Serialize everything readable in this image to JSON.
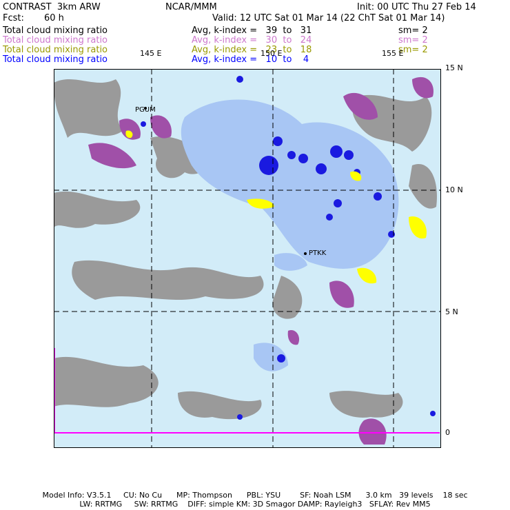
{
  "header": {
    "model": "CONTRAST  3km ARW",
    "center": "NCAR/MMM",
    "init": "Init: 00 UTC Thu 27 Feb 14",
    "fcst_label": "Fcst:",
    "fcst_value": "60 h",
    "valid": "Valid: 12 UTC Sat 01 Mar 14 (22 ChT Sat 01 Mar 14)"
  },
  "legend": [
    {
      "field": "Total cloud mixing ratio",
      "range": "Avg, k-index =   39  to   31",
      "smooth": "sm= 2",
      "color": "#000000"
    },
    {
      "field": "Total cloud mixing ratio",
      "range": "Avg, k-index =   30  to   24",
      "smooth": "sm= 2",
      "color": "#cc77cc"
    },
    {
      "field": "Total cloud mixing ratio",
      "range": "Avg, k-index =   23  to   18",
      "smooth": "sm= 2",
      "color": "#999900"
    },
    {
      "field": "Total cloud mixing ratio",
      "range": "Avg, k-index =   10  to    4",
      "smooth": "",
      "color": "#0000ff"
    }
  ],
  "map": {
    "lon_labels": [
      "145 E",
      "150 E",
      "155 E"
    ],
    "lat_labels": [
      "15 N",
      "10 N",
      "5 N",
      "0"
    ],
    "stations": [
      "PGUM",
      "PTKK"
    ],
    "colors": {
      "gray": "#9a9a9a",
      "purple": "#a050a8",
      "yellow": "#ffff00",
      "lightblue": "#d2ecf8",
      "midblue": "#8fb0f0",
      "deepblue": "#1a1ae0",
      "boundary": "#ff00ff"
    }
  },
  "footer": {
    "line1": "Model Info: V3.5.1     CU: No Cu      MP: Thompson      PBL: YSU        SF: Noah LSM      3.0 km   39 levels    18 sec",
    "line2": "LW: RRTMG     SW: RRTMG    DIFF: simple KM: 3D Smagor DAMP: Rayleigh3   SFLAY: Rev MM5"
  }
}
